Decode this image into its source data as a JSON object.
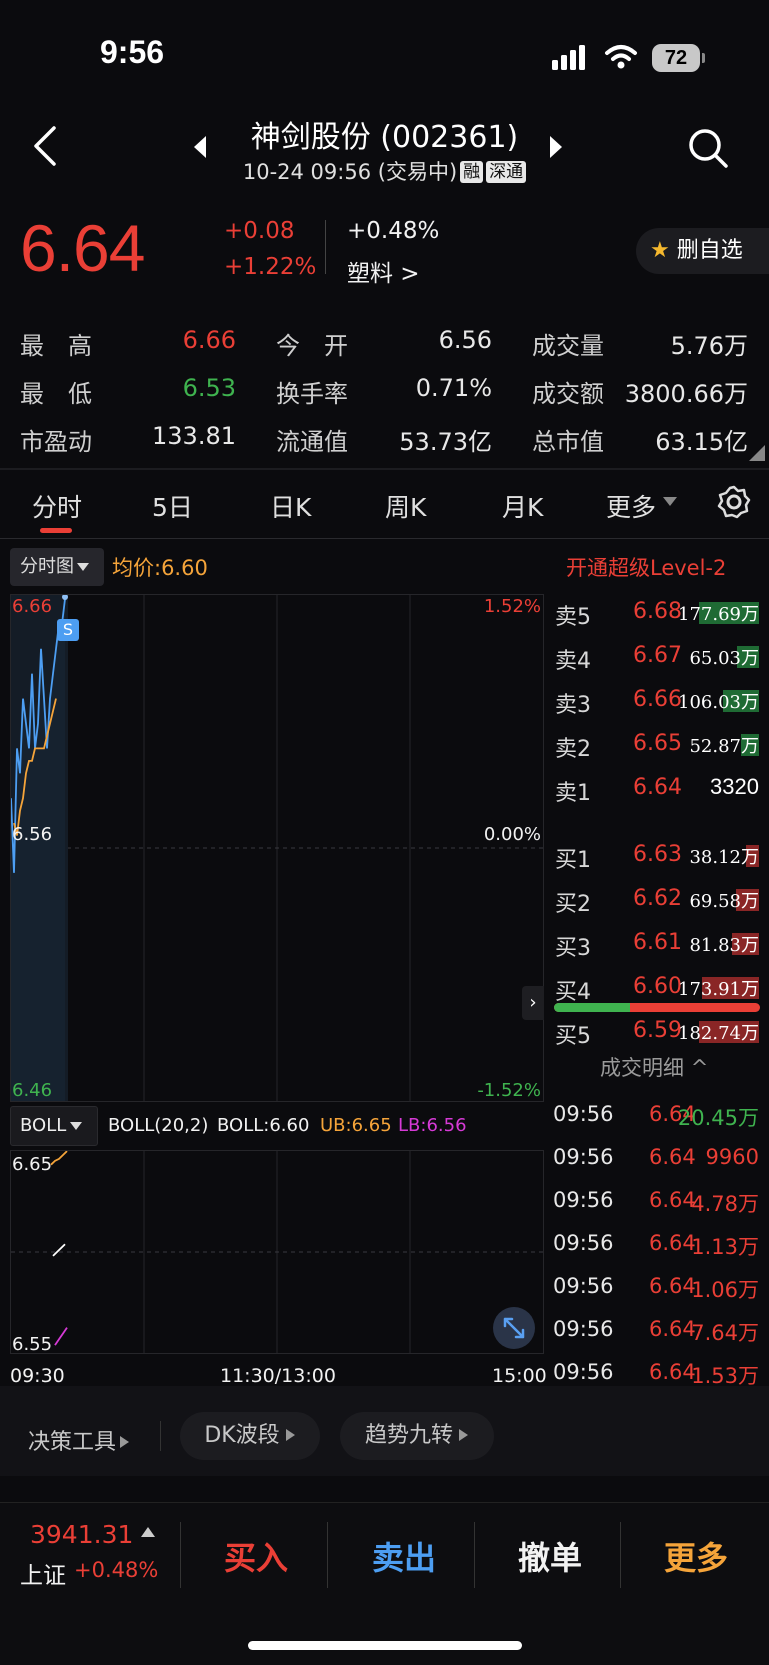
{
  "status_bar": {
    "time": "9:56",
    "battery": "72"
  },
  "header": {
    "title": "神剑股份 (002361)",
    "datetime": "10-24 09:56 (交易中)",
    "tag_margin": "融",
    "tag_connect": "深通"
  },
  "quote": {
    "price": "6.64",
    "change": "+0.08",
    "change_pct": "+1.22%",
    "sector_change": "+0.48%",
    "sector": "塑料 >",
    "fav_button": "删自选"
  },
  "stats": [
    {
      "label": "最　高",
      "value": "6.66"
    },
    {
      "label": "今　开",
      "value": "6.56"
    },
    {
      "label": "成交量",
      "value": "5.76万"
    },
    {
      "label": "最　低",
      "value": "6.53"
    },
    {
      "label": "换手率",
      "value": "0.71%"
    },
    {
      "label": "成交额",
      "value": "3800.66万"
    },
    {
      "label": "市盈动",
      "value": "133.81"
    },
    {
      "label": "流通值",
      "value": "53.73亿"
    },
    {
      "label": "总市值",
      "value": "63.15亿"
    }
  ],
  "tabs": [
    "分时",
    "5日",
    "日K",
    "周K",
    "月K",
    "更多"
  ],
  "chart": {
    "type_selector": "分时图",
    "avg_price": "均价:6.60",
    "level2": "开通超级Level-2",
    "y_high": "6.66",
    "y_mid": "6.56",
    "y_low": "6.46",
    "pct_high": "1.52%",
    "pct_mid": "0.00%",
    "pct_low": "-1.52%",
    "marker": "S",
    "indicator_selector": "BOLL",
    "boll_params": "BOLL(20,2)",
    "boll_value": "BOLL:6.60",
    "ub_value": "UB:6.65",
    "lb_value": "LB:6.56",
    "ind_high": "6.65",
    "ind_low": "6.55",
    "time_start": "09:30",
    "time_mid": "11:30/13:00",
    "time_end": "15:00"
  },
  "chart_data": {
    "type": "line",
    "series": [
      {
        "values": [
          6.58,
          6.55,
          6.6,
          6.59,
          6.62,
          6.61,
          6.6,
          6.63,
          6.6,
          6.61,
          6.64,
          6.62,
          6.6,
          6.62,
          6.63,
          6.64,
          6.65,
          6.65,
          6.66
        ],
        "color": "#4d9ef2"
      },
      {
        "values": [
          6.57,
          6.565,
          6.575,
          6.58,
          6.59,
          6.595,
          6.595,
          6.6,
          6.6,
          6.6,
          6.6,
          6.605,
          6.61,
          6.615,
          6.62
        ],
        "color": "#f5a43a"
      }
    ],
    "ylim": [
      6.46,
      6.66
    ],
    "indicator_series": [
      {
        "name": "UB",
        "values": [
          6.645,
          6.647,
          6.648,
          6.65,
          6.652
        ],
        "color": "#f5a43a"
      },
      {
        "name": "BOLL",
        "values": [
          6.598,
          6.6,
          6.602,
          6.604
        ],
        "color": "#ffffff"
      },
      {
        "name": "LB",
        "values": [
          6.552,
          6.555,
          6.558,
          6.561
        ],
        "color": "#d63ad6"
      }
    ],
    "indicator_ylim": [
      6.55,
      6.65
    ]
  },
  "order_book": {
    "asks": [
      {
        "label": "卖5",
        "price": "6.68",
        "volume": "177.69万",
        "bar": 1.0
      },
      {
        "label": "卖4",
        "price": "6.67",
        "volume": "65.03万",
        "bar": 0.37
      },
      {
        "label": "卖3",
        "price": "6.66",
        "volume": "106.03万",
        "bar": 0.6
      },
      {
        "label": "卖2",
        "price": "6.65",
        "volume": "52.87万",
        "bar": 0.3
      },
      {
        "label": "卖1",
        "price": "6.64",
        "volume": "3320",
        "bar": 0
      }
    ],
    "bids": [
      {
        "label": "买1",
        "price": "6.63",
        "volume": "38.12万",
        "bar": 0.21
      },
      {
        "label": "买2",
        "price": "6.62",
        "volume": "69.58万",
        "bar": 0.38
      },
      {
        "label": "买3",
        "price": "6.61",
        "volume": "81.83万",
        "bar": 0.45
      },
      {
        "label": "买4",
        "price": "6.60",
        "volume": "173.91万",
        "bar": 0.95
      },
      {
        "label": "买5",
        "price": "6.59",
        "volume": "182.74万",
        "bar": 1.0
      }
    ],
    "buy_ratio": 0.37,
    "trades_title": "成交明细"
  },
  "trades": [
    {
      "time": "09:56",
      "price": "6.64",
      "volume": "20.45万",
      "color": "#3fb34f"
    },
    {
      "time": "09:56",
      "price": "6.64",
      "volume": "9960",
      "color": "#ea3f36"
    },
    {
      "time": "09:56",
      "price": "6.64",
      "volume": "4.78万",
      "color": "#ea3f36"
    },
    {
      "time": "09:56",
      "price": "6.64",
      "volume": "1.13万",
      "color": "#ea3f36"
    },
    {
      "time": "09:56",
      "price": "6.64",
      "volume": "1.06万",
      "color": "#ea3f36"
    },
    {
      "time": "09:56",
      "price": "6.64",
      "volume": "7.64万",
      "color": "#ea3f36"
    },
    {
      "time": "09:56",
      "price": "6.64",
      "volume": "1.53万",
      "color": "#ea3f36"
    }
  ],
  "tools": {
    "decision": "决策工具",
    "dk": "DK波段",
    "trend": "趋势九转"
  },
  "bottom": {
    "index_value": "3941.31",
    "index_name": "上证",
    "index_change": "+0.48%",
    "buy": "买入",
    "sell": "卖出",
    "cancel": "撤单",
    "more": "更多"
  },
  "colors": {
    "up": "#ea3f36",
    "down": "#3fb34f",
    "price_line": "#4d9ef2",
    "avg_line": "#f5a43a",
    "background": "#0b0b0e"
  }
}
